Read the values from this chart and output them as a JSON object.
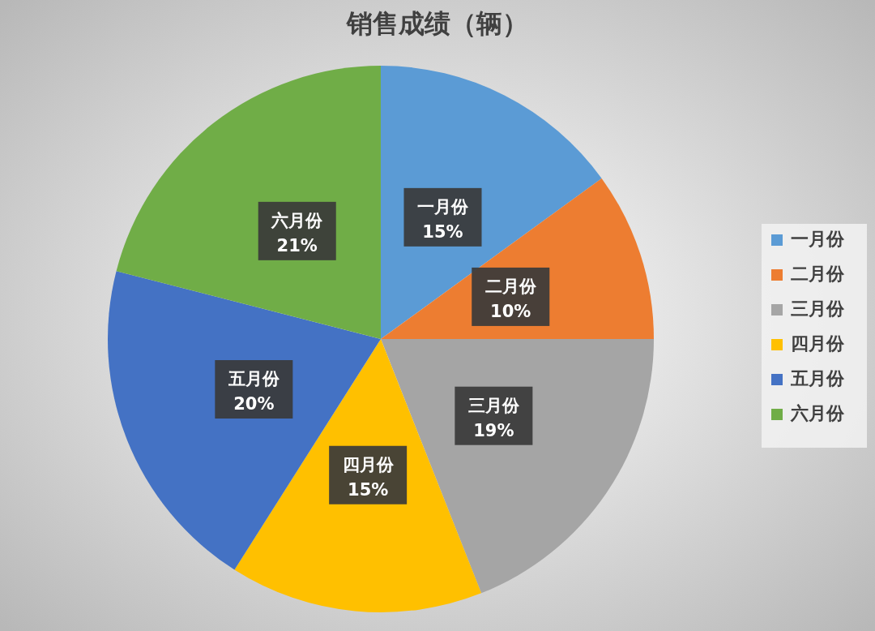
{
  "chart_data": {
    "type": "pie",
    "title": "销售成绩（辆）",
    "categories": [
      "一月份",
      "二月份",
      "三月份",
      "四月份",
      "五月份",
      "六月份"
    ],
    "values": [
      15,
      10,
      19,
      15,
      20,
      21
    ],
    "value_labels": [
      "15%",
      "10%",
      "19%",
      "15%",
      "20%",
      "21%"
    ],
    "colors": [
      "#5b9bd5",
      "#ed7d31",
      "#a5a5a5",
      "#ffc000",
      "#4472c4",
      "#70ad47"
    ],
    "legend": "right"
  }
}
